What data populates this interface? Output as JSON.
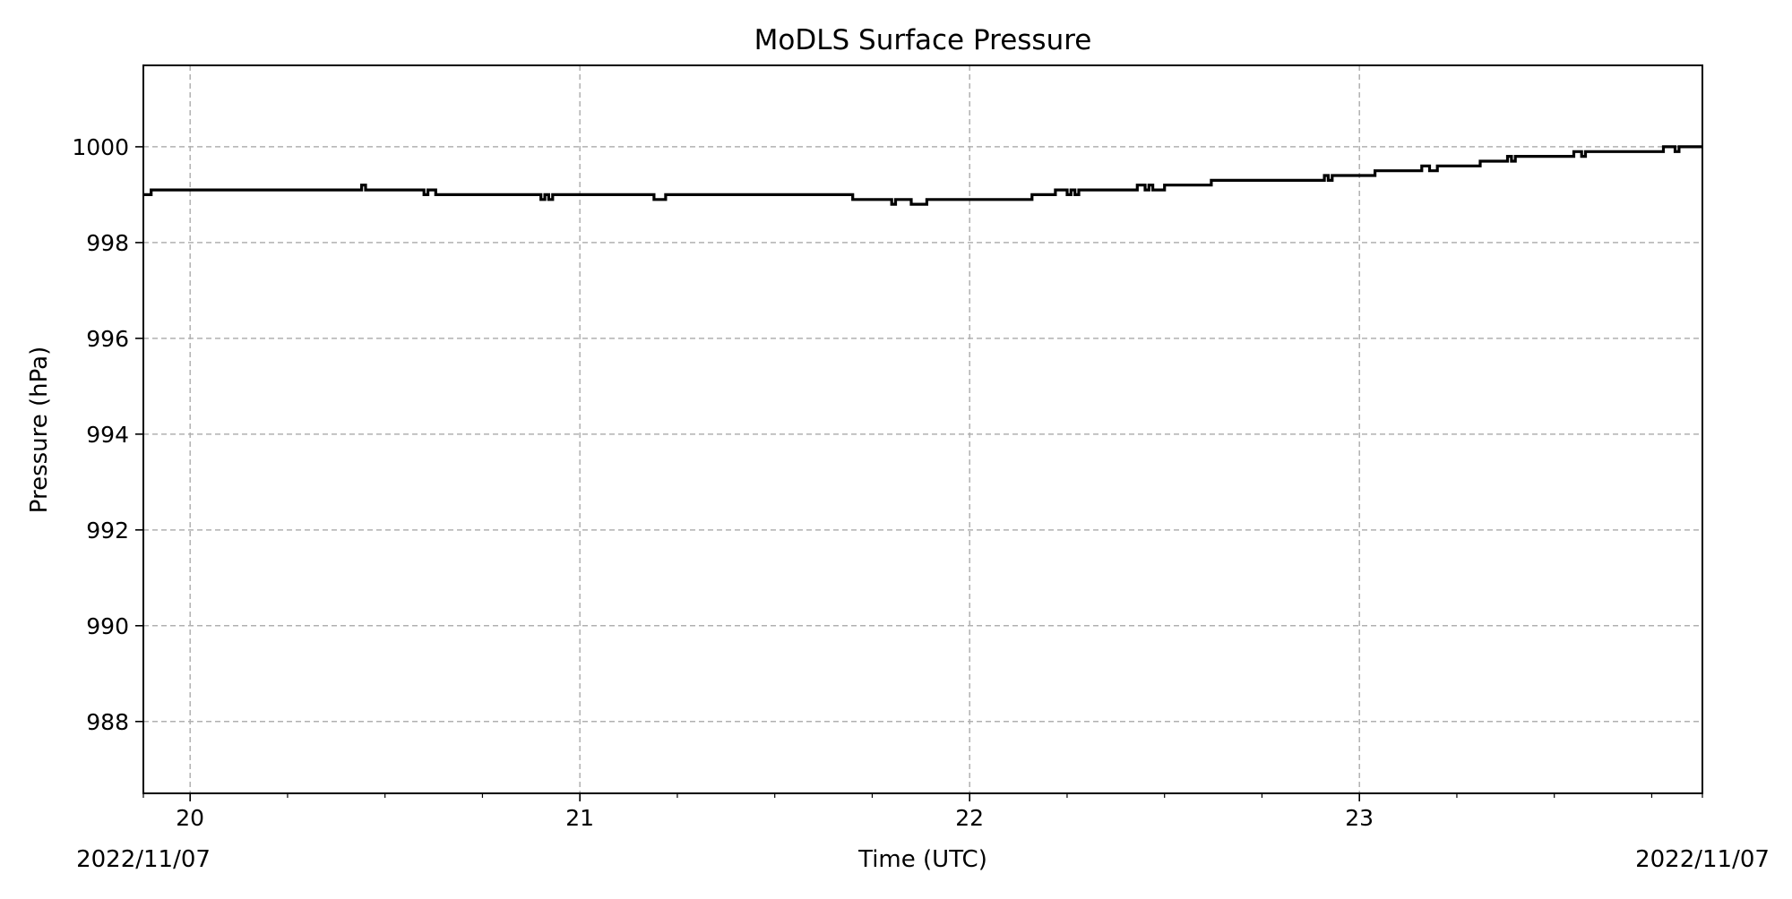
{
  "chart_data": {
    "type": "line",
    "title": "MoDLS Surface Pressure",
    "xlabel": "Time (UTC)",
    "ylabel": "Pressure (hPa)",
    "x_unit": "hour (UTC)",
    "xlim": [
      19.88,
      23.88
    ],
    "ylim": [
      986.5,
      1001.7
    ],
    "x_ticks": [
      20,
      21,
      22,
      23
    ],
    "x_tick_labels": [
      "20",
      "21",
      "22",
      "23"
    ],
    "x_minor_ticks": [
      19.88,
      20.25,
      20.5,
      20.75,
      21.25,
      21.5,
      21.75,
      22.25,
      22.5,
      22.75,
      23.25,
      23.5,
      23.75,
      23.88
    ],
    "y_ticks": [
      988,
      990,
      992,
      994,
      996,
      998,
      1000
    ],
    "y_tick_labels": [
      "988",
      "990",
      "992",
      "994",
      "996",
      "998",
      "1000"
    ],
    "date_left": "2022/11/07",
    "date_right": "2022/11/07",
    "grid": true,
    "line_color": "#000000",
    "grid_color": "#b0b0b0",
    "series": [
      {
        "style": "step",
        "points": [
          [
            19.88,
            999.0
          ],
          [
            19.9,
            999.1
          ],
          [
            20.44,
            999.2
          ],
          [
            20.45,
            999.1
          ],
          [
            20.6,
            999.0
          ],
          [
            20.61,
            999.1
          ],
          [
            20.63,
            999.0
          ],
          [
            20.9,
            998.9
          ],
          [
            20.91,
            999.0
          ],
          [
            20.92,
            998.9
          ],
          [
            20.93,
            999.0
          ],
          [
            21.19,
            998.9
          ],
          [
            21.22,
            999.0
          ],
          [
            21.7,
            998.9
          ],
          [
            21.8,
            998.8
          ],
          [
            21.81,
            998.9
          ],
          [
            21.85,
            998.8
          ],
          [
            21.89,
            998.9
          ],
          [
            22.16,
            999.0
          ],
          [
            22.22,
            999.1
          ],
          [
            22.25,
            999.0
          ],
          [
            22.26,
            999.1
          ],
          [
            22.27,
            999.0
          ],
          [
            22.28,
            999.1
          ],
          [
            22.43,
            999.2
          ],
          [
            22.45,
            999.1
          ],
          [
            22.46,
            999.2
          ],
          [
            22.47,
            999.1
          ],
          [
            22.5,
            999.2
          ],
          [
            22.62,
            999.3
          ],
          [
            22.91,
            999.4
          ],
          [
            22.92,
            999.3
          ],
          [
            22.93,
            999.4
          ],
          [
            23.04,
            999.5
          ],
          [
            23.16,
            999.6
          ],
          [
            23.18,
            999.5
          ],
          [
            23.2,
            999.6
          ],
          [
            23.31,
            999.7
          ],
          [
            23.38,
            999.8
          ],
          [
            23.39,
            999.7
          ],
          [
            23.4,
            999.8
          ],
          [
            23.55,
            999.9
          ],
          [
            23.57,
            999.8
          ],
          [
            23.58,
            999.9
          ],
          [
            23.78,
            1000.0
          ],
          [
            23.81,
            999.9
          ],
          [
            23.82,
            1000.0
          ],
          [
            23.88,
            1000.0
          ]
        ]
      }
    ]
  }
}
